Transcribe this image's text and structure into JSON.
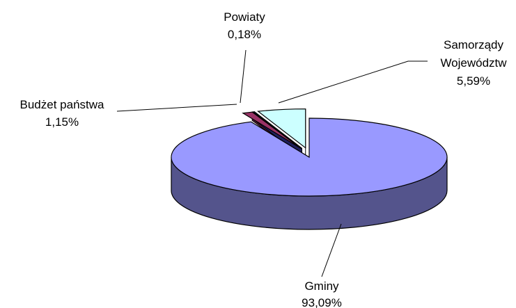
{
  "chart_data": {
    "type": "pie",
    "three_d": true,
    "slices": [
      {
        "label_lines": [
          "Gminy"
        ],
        "value_text": "93,09%",
        "value": 93.09,
        "color": "#9999ff",
        "exploded": false
      },
      {
        "label_lines": [
          "Budżet państwa"
        ],
        "value_text": "1,15%",
        "value": 1.15,
        "color": "#993366",
        "exploded": true
      },
      {
        "label_lines": [
          "Powiaty"
        ],
        "value_text": "0,18%",
        "value": 0.18,
        "color": "#333399",
        "exploded": true
      },
      {
        "label_lines": [
          "Samorządy",
          "Województw"
        ],
        "value_text": "5,59%",
        "value": 5.59,
        "color": "#ccffff",
        "exploded": true
      }
    ]
  }
}
